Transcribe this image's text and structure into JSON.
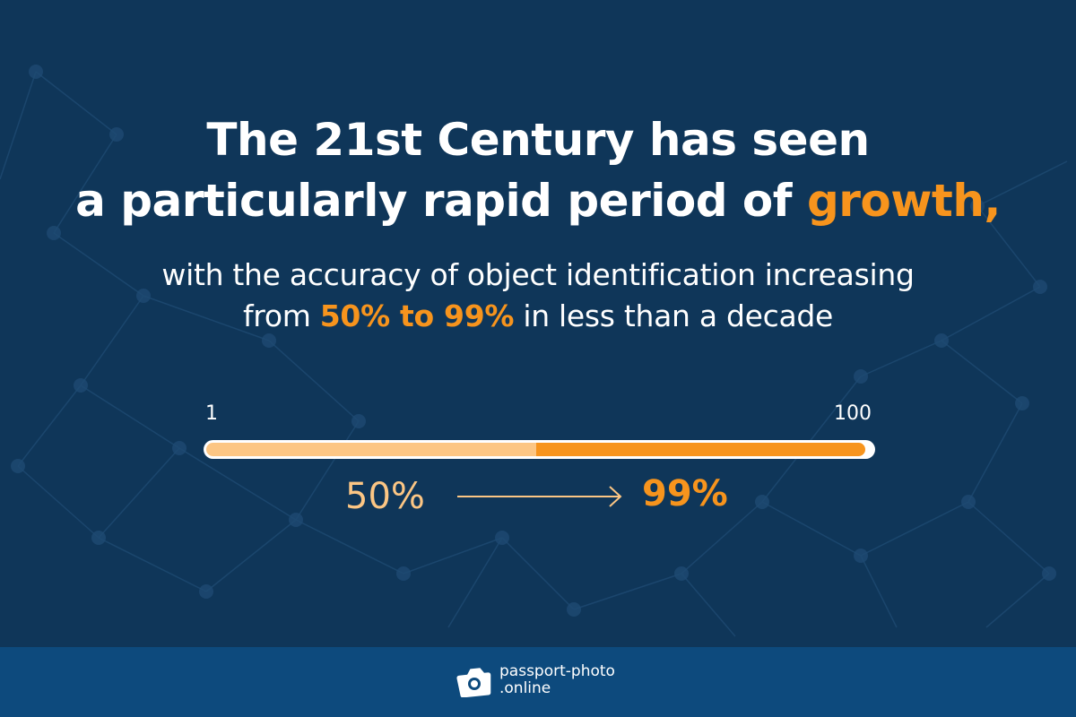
{
  "headline": {
    "line1": "The 21st Century has seen",
    "line2_pre": "a particularly rapid period of ",
    "line2_highlight": "growth,"
  },
  "subtitle": {
    "line1": "with the accuracy of object identification increasing",
    "line2_pre": "from ",
    "line2_highlight": "50% to 99%",
    "line2_post": " in less than a decade"
  },
  "scale": {
    "min_label": "1",
    "max_label": "100",
    "min": 1,
    "max": 100,
    "start_value": 50,
    "end_value": 99
  },
  "values": {
    "start": "50%",
    "end": "99%"
  },
  "logo": {
    "line1": "passport-photo",
    "line2": ".online",
    "icon": "camera-icon"
  },
  "colors": {
    "background": "#0f3659",
    "accent": "#f7941d",
    "accent_light": "#fcc684",
    "footer": "#0d4a7d"
  }
}
